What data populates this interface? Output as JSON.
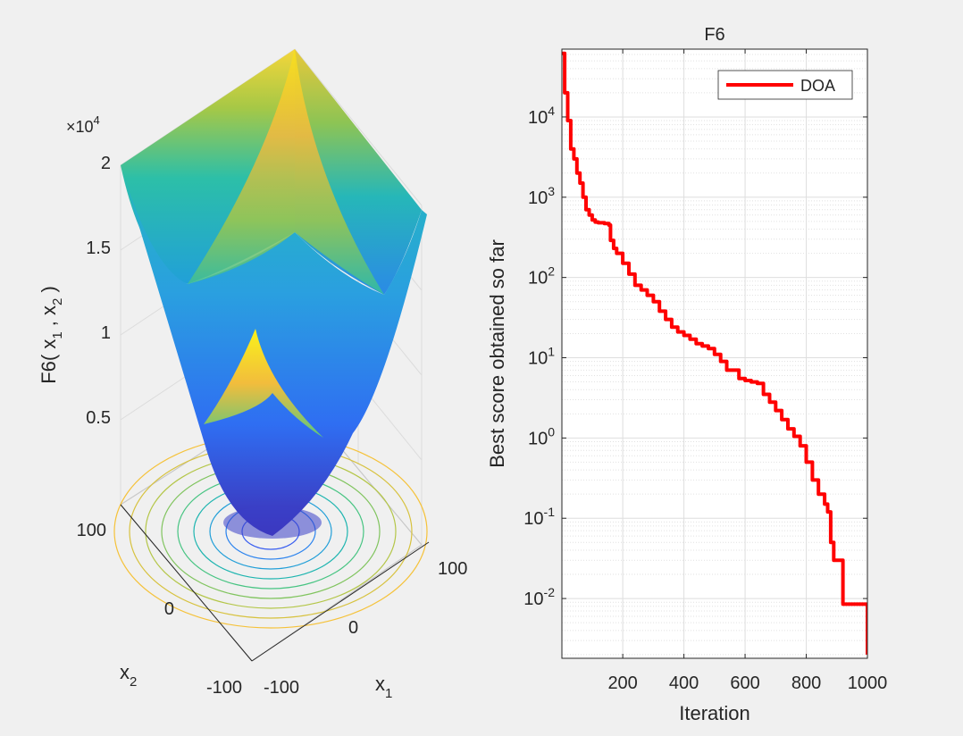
{
  "figure": {
    "background": "#f0f0f0",
    "panels": [
      "surface-plot",
      "convergence-curve"
    ]
  },
  "chart_data": [
    {
      "type": "surface",
      "function": "F6",
      "zlabel_prefix": "F6( x",
      "zlabel_mid": " , x",
      "zlabel_suffix": " )",
      "zlabel_sub1": "1",
      "zlabel_sub2": "2",
      "z_exponent_base": "×10",
      "z_exponent_power": "4",
      "z_ticks": [
        "0.5",
        "1",
        "1.5",
        "2"
      ],
      "x1_label_base": "x",
      "x1_label_sub": "1",
      "x2_label_base": "x",
      "x2_label_sub": "2",
      "x1_ticks": [
        "-100",
        "0",
        "100"
      ],
      "x2_ticks": [
        "-100",
        "0",
        "100"
      ],
      "x1_range": [
        -100,
        100
      ],
      "x2_range": [
        -100,
        100
      ],
      "z_range": [
        0,
        20000
      ],
      "colormap": [
        "#3e26a8",
        "#2d6ff1",
        "#1aaed7",
        "#31c69a",
        "#a0c747",
        "#f8ba3c",
        "#f9fb15"
      ]
    },
    {
      "type": "line",
      "title": "F6",
      "xlabel": "Iteration",
      "ylabel": "Best score obtained so far",
      "yscale": "log",
      "xlim": [
        1,
        1000
      ],
      "ylim": [
        0.0018,
        70000
      ],
      "x_ticks": [
        "200",
        "400",
        "600",
        "800",
        "1000"
      ],
      "y_tick_base": "10",
      "y_tick_exponents": [
        "-2",
        "-1",
        "0",
        "1",
        "2",
        "3",
        "4"
      ],
      "grid": true,
      "legend_position": "top-right",
      "series": [
        {
          "name": "DOA",
          "color": "#ff0000",
          "x": [
            1,
            10,
            20,
            30,
            40,
            50,
            60,
            70,
            80,
            90,
            100,
            110,
            120,
            140,
            155,
            160,
            170,
            180,
            200,
            220,
            240,
            260,
            280,
            300,
            320,
            340,
            360,
            380,
            400,
            420,
            440,
            460,
            480,
            500,
            520,
            540,
            560,
            580,
            600,
            620,
            640,
            660,
            680,
            700,
            720,
            740,
            760,
            780,
            800,
            820,
            840,
            860,
            870,
            880,
            890,
            900,
            920,
            940,
            960,
            970,
            985,
            1000
          ],
          "values": [
            62000,
            20000,
            9000,
            4000,
            3000,
            2000,
            1500,
            1000,
            700,
            600,
            520,
            490,
            480,
            470,
            450,
            290,
            230,
            200,
            150,
            110,
            80,
            70,
            60,
            50,
            38,
            30,
            24,
            21,
            19,
            17,
            15,
            14,
            13,
            11,
            9,
            7,
            7,
            5.5,
            5.2,
            5.0,
            4.8,
            3.5,
            2.8,
            2.2,
            1.7,
            1.3,
            1.05,
            0.8,
            0.5,
            0.3,
            0.2,
            0.15,
            0.12,
            0.05,
            0.03,
            0.03,
            0.0085,
            0.0085,
            0.0085,
            0.0085,
            0.0085,
            0.002
          ]
        }
      ]
    }
  ]
}
